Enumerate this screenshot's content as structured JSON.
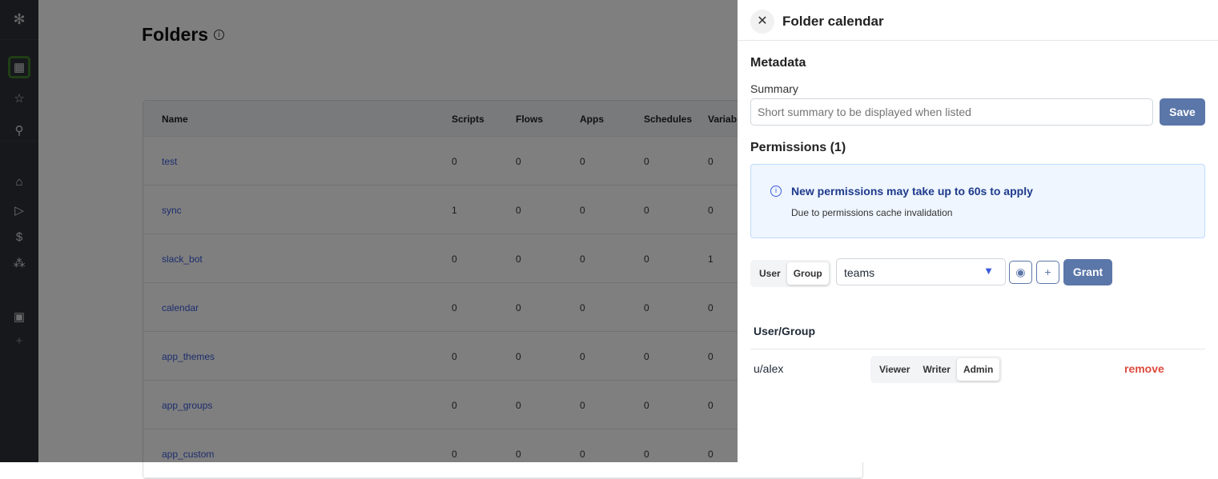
{
  "sidebar": {
    "items": [
      "folders",
      "favorites",
      "search",
      "home",
      "runs",
      "billing",
      "resources",
      "schedules",
      "add"
    ],
    "active": "folders"
  },
  "page": {
    "title": "Folders"
  },
  "table": {
    "columns": [
      "Name",
      "Scripts",
      "Flows",
      "Apps",
      "Schedules",
      "Variab"
    ],
    "rows": [
      [
        "test",
        "0",
        "0",
        "0",
        "0",
        "0"
      ],
      [
        "sync",
        "1",
        "0",
        "0",
        "0",
        "0"
      ],
      [
        "slack_bot",
        "0",
        "0",
        "0",
        "0",
        "1"
      ],
      [
        "calendar",
        "0",
        "0",
        "0",
        "0",
        "0"
      ],
      [
        "app_themes",
        "0",
        "0",
        "0",
        "0",
        "0"
      ],
      [
        "app_groups",
        "0",
        "0",
        "0",
        "0",
        "0"
      ],
      [
        "app_custom",
        "0",
        "0",
        "0",
        "0",
        "0"
      ]
    ]
  },
  "drawer": {
    "title": "Folder calendar",
    "metadata": "Metadata",
    "summary_label": "Summary",
    "summary_placeholder": "Short summary to be displayed when listed",
    "save": "Save",
    "permissions": "Permissions (1)",
    "alert_title": "New permissions may take up to 60s to apply",
    "alert_body": "Due to permissions cache invalidation",
    "toggle": {
      "user": "User",
      "group": "Group",
      "selected": "Group"
    },
    "group_value": "teams",
    "grant": "Grant",
    "list_header": "User/Group",
    "entries": [
      {
        "name": "u/alex",
        "roles": [
          "Viewer",
          "Writer",
          "Admin"
        ],
        "role": "Admin",
        "remove": "remove"
      }
    ]
  },
  "colors": {
    "accent": "#5b76a8",
    "remove": "#dc4a3d",
    "link": "#3b5bdb"
  }
}
